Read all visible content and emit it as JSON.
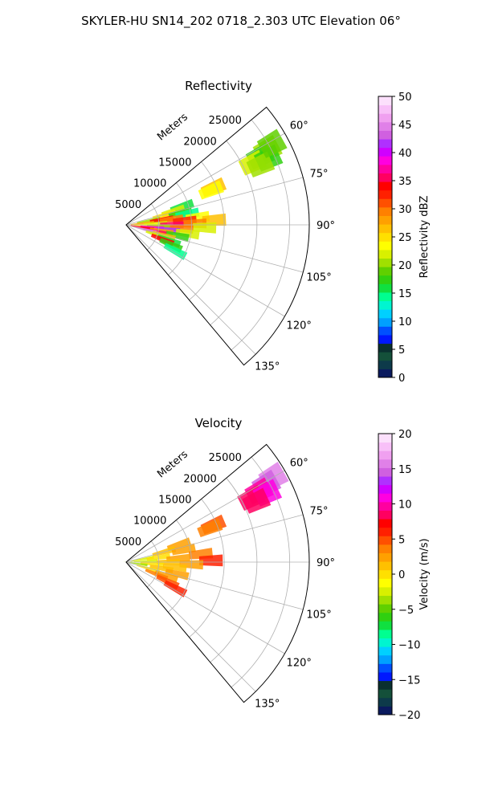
{
  "suptitle": "SKYLER-HU  SN14_202  0718_2.303 UTC Elevation 06°",
  "chart_data": [
    {
      "type": "heatmap",
      "projection": "polar-sector",
      "title": "Reflectivity",
      "r_axis_label": "Meters",
      "r_ticks": [
        5000,
        10000,
        15000,
        20000,
        25000
      ],
      "r_tick_labels": [
        "5000",
        "10000",
        "15000",
        "20000",
        "25000"
      ],
      "r_max": 28000,
      "theta_range_deg": [
        50,
        140
      ],
      "theta_ticks": [
        60,
        75,
        90,
        105,
        120,
        135
      ],
      "theta_tick_labels": [
        "60°",
        "75°",
        "90°",
        "105°",
        "120°",
        "135°"
      ],
      "grid": true,
      "colorbar": {
        "label": "Reflectivity dBZ",
        "vmin": 0,
        "vmax": 50,
        "ticks": [
          0,
          5,
          10,
          15,
          20,
          25,
          30,
          35,
          40,
          45,
          50
        ],
        "tick_labels": [
          "0",
          "5",
          "10",
          "15",
          "20",
          "25",
          "30",
          "35",
          "40",
          "45",
          "50"
        ],
        "colors": [
          "#0a1a5e",
          "#0d3a4a",
          "#14503a",
          "#0a3030",
          "#0018ff",
          "#0050ff",
          "#00a0ff",
          "#00d0ff",
          "#00f5d0",
          "#00ff90",
          "#10e040",
          "#30d010",
          "#60d000",
          "#a0e000",
          "#d8f000",
          "#ffff00",
          "#ffe000",
          "#ffc000",
          "#ffa000",
          "#ff8000",
          "#ff5000",
          "#ff2000",
          "#ff0000",
          "#ff0060",
          "#ff00a0",
          "#ff00e0",
          "#d000ff",
          "#b030ff",
          "#d060e0",
          "#e080e8",
          "#f0a0f0",
          "#f8c0f8",
          "#fce0fc"
        ]
      },
      "gates": [
        {
          "az": 62,
          "r": 24500,
          "v": 20
        },
        {
          "az": 63,
          "r": 23000,
          "v": 18
        },
        {
          "az": 64,
          "r": 21500,
          "v": 22
        },
        {
          "az": 65,
          "r": 24000,
          "v": 17
        },
        {
          "az": 66,
          "r": 22500,
          "v": 20
        },
        {
          "az": 61,
          "r": 25500,
          "v": 19
        },
        {
          "az": 67,
          "r": 14500,
          "v": 26
        },
        {
          "az": 68,
          "r": 14000,
          "v": 24
        },
        {
          "az": 72,
          "r": 9000,
          "v": 16
        },
        {
          "az": 74,
          "r": 7500,
          "v": 22
        },
        {
          "az": 76,
          "r": 6000,
          "v": 25
        },
        {
          "az": 78,
          "r": 8500,
          "v": 18
        },
        {
          "az": 80,
          "r": 3500,
          "v": 20
        },
        {
          "az": 80,
          "r": 9500,
          "v": 15
        },
        {
          "az": 82,
          "r": 5500,
          "v": 34
        },
        {
          "az": 83,
          "r": 7000,
          "v": 30
        },
        {
          "az": 84,
          "r": 11000,
          "v": 24
        },
        {
          "az": 85,
          "r": 2500,
          "v": 28
        },
        {
          "az": 86,
          "r": 9000,
          "v": 32
        },
        {
          "az": 87,
          "r": 13500,
          "v": 26
        },
        {
          "az": 88,
          "r": 4500,
          "v": 22
        },
        {
          "az": 89,
          "r": 10500,
          "v": 30
        },
        {
          "az": 90,
          "r": 7000,
          "v": 36
        },
        {
          "az": 91,
          "r": 3000,
          "v": 24
        },
        {
          "az": 92,
          "r": 12000,
          "v": 22
        },
        {
          "az": 93,
          "r": 5000,
          "v": 20
        },
        {
          "az": 94,
          "r": 8500,
          "v": 30
        },
        {
          "az": 96,
          "r": 4000,
          "v": 38
        },
        {
          "az": 97,
          "r": 6500,
          "v": 42
        },
        {
          "az": 98,
          "r": 9500,
          "v": 22
        },
        {
          "az": 99,
          "r": 2500,
          "v": 34
        },
        {
          "az": 100,
          "r": 5500,
          "v": 28
        },
        {
          "az": 102,
          "r": 8000,
          "v": 18
        },
        {
          "az": 103,
          "r": 4500,
          "v": 36
        },
        {
          "az": 104,
          "r": 3000,
          "v": 44
        },
        {
          "az": 106,
          "r": 6000,
          "v": 26
        },
        {
          "az": 108,
          "r": 5000,
          "v": 22
        },
        {
          "az": 110,
          "r": 7000,
          "v": 16
        },
        {
          "az": 112,
          "r": 6000,
          "v": 34
        },
        {
          "az": 114,
          "r": 7500,
          "v": 18
        },
        {
          "az": 118,
          "r": 8500,
          "v": 15
        }
      ]
    },
    {
      "type": "heatmap",
      "projection": "polar-sector",
      "title": "Velocity",
      "r_axis_label": "Meters",
      "r_ticks": [
        5000,
        10000,
        15000,
        20000,
        25000
      ],
      "r_tick_labels": [
        "5000",
        "10000",
        "15000",
        "20000",
        "25000"
      ],
      "r_max": 28000,
      "theta_range_deg": [
        50,
        140
      ],
      "theta_ticks": [
        60,
        75,
        90,
        105,
        120,
        135
      ],
      "theta_tick_labels": [
        "60°",
        "75°",
        "90°",
        "105°",
        "120°",
        "135°"
      ],
      "grid": true,
      "colorbar": {
        "label": "Velocity (m/s)",
        "vmin": -20,
        "vmax": 20,
        "ticks": [
          -20,
          -15,
          -10,
          -5,
          0,
          5,
          10,
          15,
          20
        ],
        "tick_labels": [
          "−20",
          "−15",
          "−10",
          "−5",
          "0",
          "5",
          "10",
          "15",
          "20"
        ],
        "colors": [
          "#0a1a5e",
          "#0d3a4a",
          "#14503a",
          "#0a3030",
          "#0018ff",
          "#0050ff",
          "#00a0ff",
          "#00d0ff",
          "#00f5d0",
          "#00ff90",
          "#10e040",
          "#30d010",
          "#60d000",
          "#a0e000",
          "#d8f000",
          "#ffff00",
          "#ffe000",
          "#ffc000",
          "#ffa000",
          "#ff8000",
          "#ff5000",
          "#ff2000",
          "#ff0000",
          "#ff0060",
          "#ff00a0",
          "#ff00e0",
          "#d000ff",
          "#b030ff",
          "#d060e0",
          "#e080e8",
          "#f0a0f0",
          "#f8c0f8",
          "#fce0fc"
        ]
      },
      "gates": [
        {
          "az": 60,
          "r": 26000,
          "v": 16
        },
        {
          "az": 61,
          "r": 24500,
          "v": 14
        },
        {
          "az": 62,
          "r": 23000,
          "v": 10
        },
        {
          "az": 63,
          "r": 21500,
          "v": 9
        },
        {
          "az": 64,
          "r": 24000,
          "v": 11
        },
        {
          "az": 65,
          "r": 22000,
          "v": 8
        },
        {
          "az": 67,
          "r": 14500,
          "v": 5
        },
        {
          "az": 68,
          "r": 13800,
          "v": 4
        },
        {
          "az": 72,
          "r": 8500,
          "v": 2
        },
        {
          "az": 75,
          "r": 6000,
          "v": 1
        },
        {
          "az": 78,
          "r": 9000,
          "v": 3
        },
        {
          "az": 80,
          "r": 2500,
          "v": -3
        },
        {
          "az": 82,
          "r": 5000,
          "v": 0
        },
        {
          "az": 84,
          "r": 11500,
          "v": 4
        },
        {
          "az": 86,
          "r": 8000,
          "v": 2
        },
        {
          "az": 88,
          "r": 3000,
          "v": -2
        },
        {
          "az": 89,
          "r": 13000,
          "v": 6
        },
        {
          "az": 90,
          "r": 6500,
          "v": 1
        },
        {
          "az": 92,
          "r": 10000,
          "v": 2
        },
        {
          "az": 94,
          "r": 4000,
          "v": 0
        },
        {
          "az": 96,
          "r": 7500,
          "v": 1
        },
        {
          "az": 98,
          "r": 1500,
          "v": -4
        },
        {
          "az": 100,
          "r": 5500,
          "v": 1
        },
        {
          "az": 103,
          "r": 8000,
          "v": 2
        },
        {
          "az": 106,
          "r": 3500,
          "v": 0
        },
        {
          "az": 109,
          "r": 6500,
          "v": 3
        },
        {
          "az": 112,
          "r": 5000,
          "v": 4
        },
        {
          "az": 115,
          "r": 7000,
          "v": 5
        },
        {
          "az": 118,
          "r": 8500,
          "v": 6
        }
      ]
    }
  ]
}
